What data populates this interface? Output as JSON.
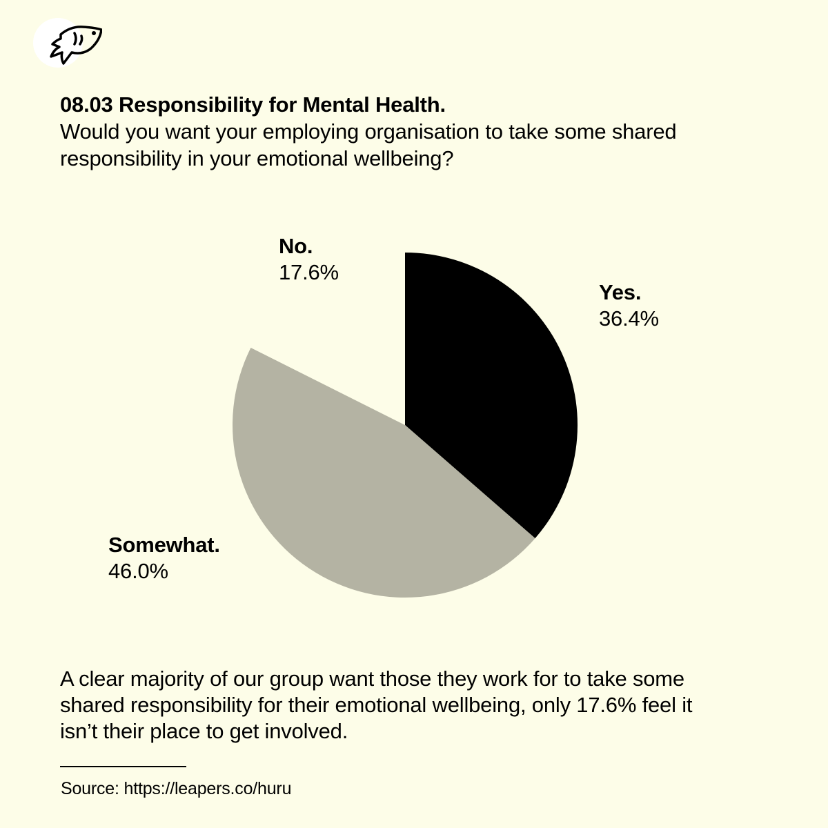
{
  "brand": {
    "logo_icon": "fish-logo-icon"
  },
  "header": {
    "title": "08.03 Responsibility for Mental Health.",
    "subtitle": "Would you want your employing organisation to take some shared responsibility in your emotional wellbeing?"
  },
  "chart_data": {
    "type": "pie",
    "start_angle": "top, clockwise",
    "slices": [
      {
        "name": "Yes.",
        "value": 36.4,
        "label": "36.4%",
        "color": "#000000"
      },
      {
        "name": "Somewhat.",
        "value": 46.0,
        "label": "46.0%",
        "color": "#b4b3a3"
      },
      {
        "name": "No.",
        "value": 17.6,
        "label": "17.6%",
        "color": "#fdfde8"
      }
    ]
  },
  "summary": "A clear majority of our group want those they work for to take some shared responsibility for their emotional wellbeing, only 17.6% feel it isn’t their place to get involved.",
  "footer": {
    "source": "Source: https://leapers.co/huru"
  },
  "colors": {
    "background": "#fdfde8",
    "text": "#000000"
  }
}
